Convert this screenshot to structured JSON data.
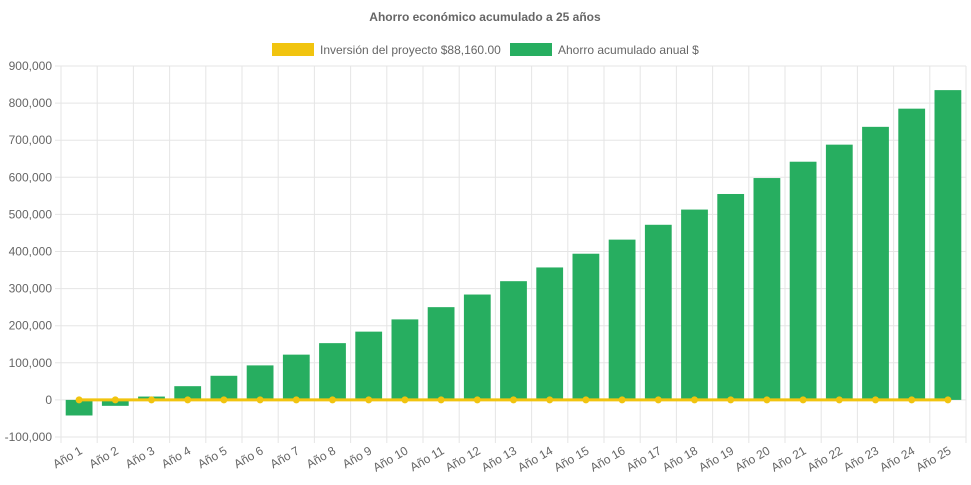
{
  "chart_data": {
    "type": "bar",
    "title": "Ahorro económico acumulado a 25 años",
    "categories": [
      "Año 1",
      "Año 2",
      "Año 3",
      "Año 4",
      "Año 5",
      "Año 6",
      "Año 7",
      "Año 8",
      "Año 9",
      "Año 10",
      "Año 11",
      "Año 12",
      "Año 13",
      "Año 14",
      "Año 15",
      "Año 16",
      "Año 17",
      "Año 18",
      "Año 19",
      "Año 20",
      "Año 21",
      "Año 22",
      "Año 23",
      "Año 24",
      "Año 25"
    ],
    "series": [
      {
        "name": "Inversión del proyecto $88,160.00",
        "type": "line",
        "color": "#f1c40f",
        "values": [
          0,
          0,
          0,
          0,
          0,
          0,
          0,
          0,
          0,
          0,
          0,
          0,
          0,
          0,
          0,
          0,
          0,
          0,
          0,
          0,
          0,
          0,
          0,
          0,
          0
        ]
      },
      {
        "name": "Ahorro acumulado anual $",
        "type": "bar",
        "color": "#27ae60",
        "values": [
          -42000,
          -16000,
          9000,
          37000,
          65000,
          93000,
          122000,
          153000,
          184000,
          217000,
          250000,
          284000,
          320000,
          357000,
          394000,
          432000,
          472000,
          513000,
          555000,
          598000,
          642000,
          688000,
          736000,
          785000,
          835000
        ]
      }
    ],
    "yticks": [
      "900,000",
      "800,000",
      "700,000",
      "600,000",
      "500,000",
      "400,000",
      "300,000",
      "200,000",
      "100,000",
      "0",
      "-100,000"
    ],
    "ylim": [
      -100000,
      900000
    ],
    "grid": true,
    "legend_position": "top"
  }
}
